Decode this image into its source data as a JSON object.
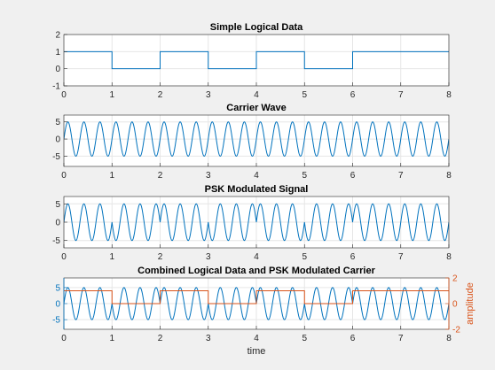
{
  "chart_data": [
    {
      "type": "line",
      "title": "Simple Logical Data",
      "xlabel": "",
      "ylabel": "",
      "xlim": [
        0,
        8
      ],
      "ylim": [
        -1,
        2
      ],
      "xticks": [
        "0",
        "1",
        "2",
        "3",
        "4",
        "5",
        "6",
        "7",
        "8"
      ],
      "yticks": [
        "-1",
        "0",
        "1",
        "2"
      ],
      "grid": true,
      "series": [
        {
          "kind": "step",
          "bits": [
            1,
            0,
            1,
            0,
            1,
            0,
            1,
            1
          ],
          "color": "#0072bd"
        }
      ]
    },
    {
      "type": "line",
      "title": "Carrier Wave",
      "xlabel": "",
      "ylabel": "",
      "xlim": [
        0,
        8
      ],
      "ylim": [
        -8,
        7
      ],
      "xticks": [
        "0",
        "1",
        "2",
        "3",
        "4",
        "5",
        "6",
        "7",
        "8"
      ],
      "yticks": [
        "-5",
        "0",
        "5"
      ],
      "grid": true,
      "series": [
        {
          "kind": "sine",
          "amplitude": 5,
          "cycles_per_unit": 3,
          "phase_flip": false,
          "color": "#0072bd"
        }
      ]
    },
    {
      "type": "line",
      "title": "PSK Modulated Signal",
      "xlabel": "",
      "ylabel": "",
      "xlim": [
        0,
        8
      ],
      "ylim": [
        -7,
        7
      ],
      "xticks": [
        "0",
        "1",
        "2",
        "3",
        "4",
        "5",
        "6",
        "7",
        "8"
      ],
      "yticks": [
        "-5",
        "0",
        "5"
      ],
      "grid": true,
      "series": [
        {
          "kind": "sine",
          "amplitude": 5,
          "cycles_per_unit": 3,
          "phase_flip": true,
          "bits": [
            1,
            0,
            1,
            0,
            1,
            0,
            1,
            1
          ],
          "color": "#0072bd"
        }
      ]
    },
    {
      "type": "line",
      "title": "Combined Logical Data and PSK Modulated Carrier",
      "xlabel": "time",
      "ylabel": "",
      "ylabel_right": "amplitude",
      "xlim": [
        0,
        8
      ],
      "ylim": [
        -8,
        8
      ],
      "ylim_right": [
        -2,
        2
      ],
      "xticks": [
        "0",
        "1",
        "2",
        "3",
        "4",
        "5",
        "6",
        "7",
        "8"
      ],
      "yticks": [
        "-5",
        "0",
        "5"
      ],
      "yticks_right": [
        "-2",
        "0",
        "2"
      ],
      "grid": true,
      "left_axis_color": "#0072bd",
      "right_axis_color": "#d95319",
      "series": [
        {
          "kind": "sine",
          "amplitude": 5,
          "cycles_per_unit": 3,
          "phase_flip": true,
          "bits": [
            1,
            0,
            1,
            0,
            1,
            0,
            1,
            1
          ],
          "color": "#0072bd",
          "axis": "left"
        },
        {
          "kind": "step",
          "bits": [
            1,
            0,
            1,
            0,
            1,
            0,
            1,
            1
          ],
          "color": "#d95319",
          "axis": "right"
        }
      ]
    }
  ]
}
